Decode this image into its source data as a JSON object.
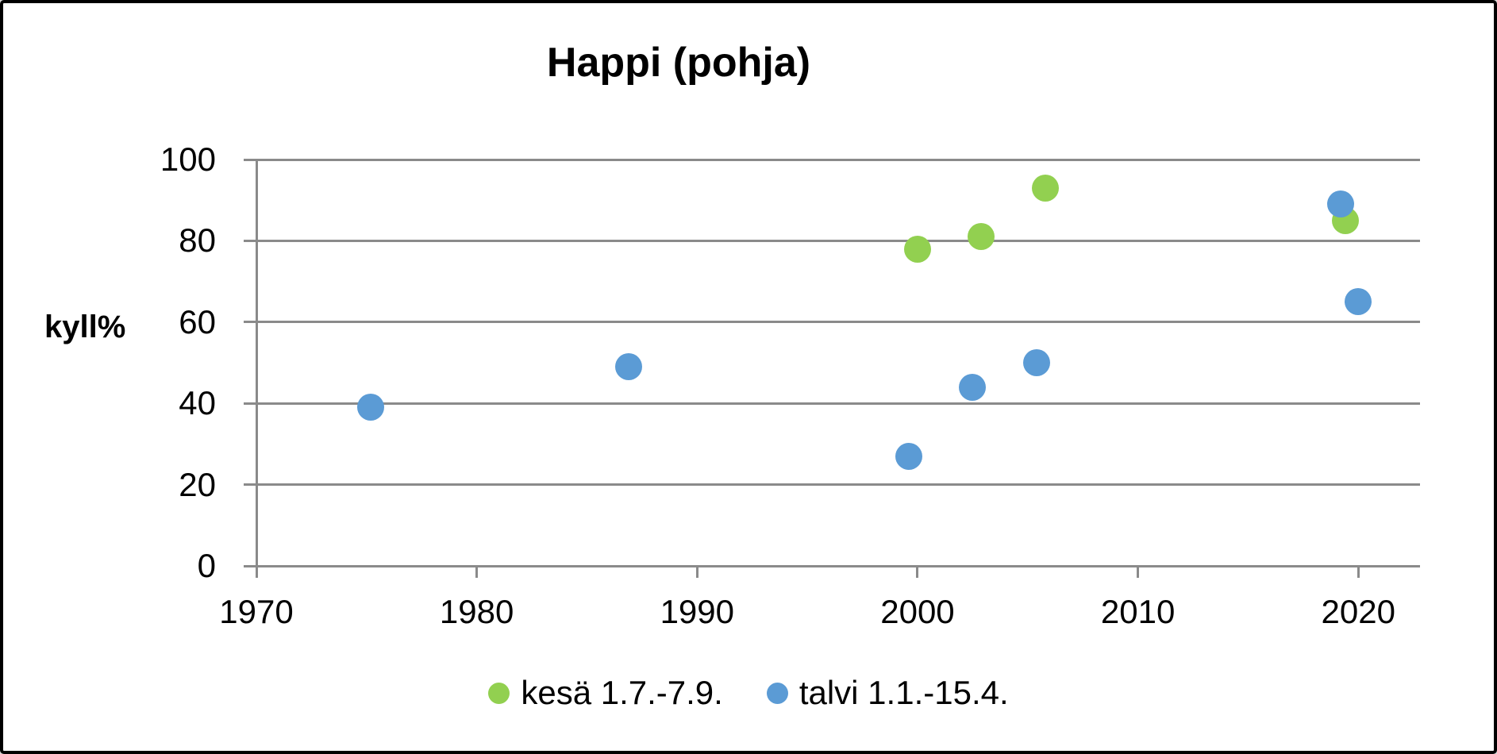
{
  "chart_data": {
    "type": "scatter",
    "title": "Happi (pohja)",
    "ylabel": "kyll%",
    "xlabel": "",
    "xlim": [
      1970,
      2022.8
    ],
    "ylim": [
      0,
      100
    ],
    "x_ticks": [
      1970,
      1980,
      1990,
      2000,
      2010,
      2020
    ],
    "y_ticks": [
      0,
      20,
      40,
      60,
      80,
      100
    ],
    "grid": "horizontal",
    "legend_position": "bottom-center",
    "marker_shape": "circle",
    "colors": {
      "gridline": "#8a8a8a",
      "axis": "#8a8a8a",
      "text": "#000000",
      "background": "#ffffff",
      "border": "#000000"
    },
    "series": [
      {
        "name": "kesä 1.7.-7.9.",
        "color": "#92d050",
        "points": [
          {
            "x": 2000.0,
            "y": 78
          },
          {
            "x": 2002.9,
            "y": 81
          },
          {
            "x": 2005.8,
            "y": 93
          },
          {
            "x": 2019.4,
            "y": 85
          }
        ]
      },
      {
        "name": "talvi 1.1.-15.4.",
        "color": "#5b9bd5",
        "points": [
          {
            "x": 1975.2,
            "y": 39
          },
          {
            "x": 1986.9,
            "y": 49
          },
          {
            "x": 1999.6,
            "y": 27
          },
          {
            "x": 2002.5,
            "y": 44
          },
          {
            "x": 2005.4,
            "y": 50
          },
          {
            "x": 2019.2,
            "y": 89
          },
          {
            "x": 2020.0,
            "y": 65
          }
        ]
      }
    ]
  }
}
